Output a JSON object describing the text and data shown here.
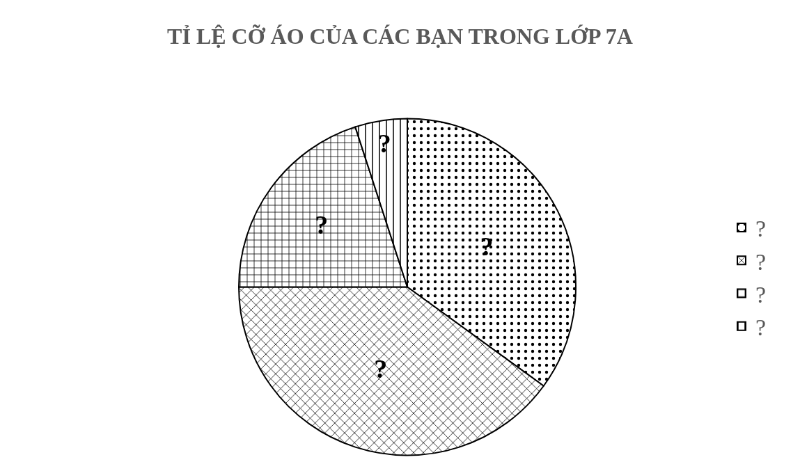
{
  "chart_data": {
    "type": "pie",
    "title": "TỈ LỆ CỠ ÁO CỦA CÁC BẠN TRONG LỚP 7A",
    "categories": [
      "?",
      "?",
      "?",
      "?"
    ],
    "values": [
      35,
      40,
      20,
      5
    ],
    "colors": [
      "#000000",
      "#000000",
      "#000000",
      "#000000"
    ],
    "value_labels": [
      "?",
      "?",
      "?",
      "?"
    ],
    "legend": "right"
  }
}
